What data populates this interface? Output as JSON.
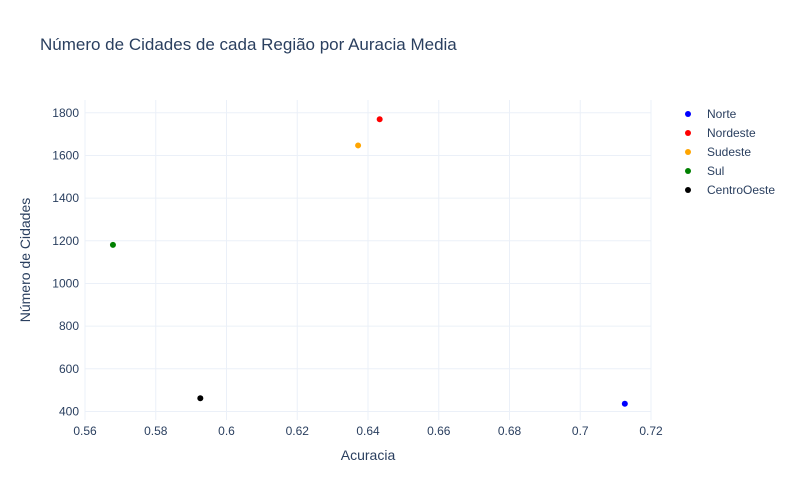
{
  "chart_data": {
    "type": "scatter",
    "title": "Número de Cidades de cada Região por Auracia Media",
    "xlabel": "Acuracia",
    "ylabel": "Número de Cidades",
    "xlim": [
      0.56,
      0.72
    ],
    "ylim": [
      360,
      1860
    ],
    "x_ticks": [
      "0.56",
      "0.58",
      "0.6",
      "0.62",
      "0.64",
      "0.66",
      "0.68",
      "0.7",
      "0.72"
    ],
    "x_tick_values": [
      0.56,
      0.58,
      0.6,
      0.62,
      0.64,
      0.66,
      0.68,
      0.7,
      0.72
    ],
    "y_ticks": [
      "400",
      "600",
      "800",
      "1000",
      "1200",
      "1400",
      "1600",
      "1800"
    ],
    "y_tick_values": [
      400,
      600,
      800,
      1000,
      1200,
      1400,
      1600,
      1800
    ],
    "grid": true,
    "legend_position": "right",
    "series": [
      {
        "name": "Norte",
        "color": "#0000ff",
        "x": [
          0.7126
        ],
        "y": [
          436
        ]
      },
      {
        "name": "Nordeste",
        "color": "#ff0000",
        "x": [
          0.6433
        ],
        "y": [
          1770
        ]
      },
      {
        "name": "Sudeste",
        "color": "#ffa500",
        "x": [
          0.6372
        ],
        "y": [
          1647
        ]
      },
      {
        "name": "Sul",
        "color": "#008000",
        "x": [
          0.5679
        ],
        "y": [
          1181
        ]
      },
      {
        "name": "CentroOeste",
        "color": "#000000",
        "x": [
          0.5926
        ],
        "y": [
          462
        ]
      }
    ]
  }
}
